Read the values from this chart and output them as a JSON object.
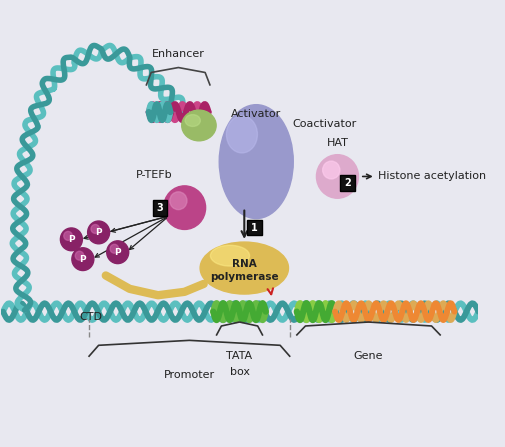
{
  "bg_color": "#e8e8f0",
  "labels": {
    "enhancer": "Enhancer",
    "activator": "Activator",
    "coactivator": "Coactivator",
    "hat": "HAT",
    "histone_acetylation": "Histone acetylation",
    "ptefb": "P-TEFb",
    "ctd": "CTD",
    "rna_pol": [
      "RNA",
      "polymerase"
    ],
    "tata_box": [
      "TATA",
      "box"
    ],
    "promoter": "Promoter",
    "gene": "Gene",
    "p_label": "P",
    "num1": "1",
    "num2": "2",
    "num3": "3"
  },
  "colors": {
    "dna_main": "#5bbfbf",
    "dna_dark": "#3a9999",
    "dna_enhancer": "#cc4488",
    "dna_enhancer2": "#aa2266",
    "activator": "#99bb66",
    "activator_hl": "#bbdd88",
    "coactivator": "#9999cc",
    "coactivator_hl": "#bbbbee",
    "rna_pol": "#ddbb55",
    "rna_pol_hl": "#ffee88",
    "hat": "#ddaacc",
    "hat_hl": "#ffccee",
    "ptefb": "#bb4488",
    "ptefb_hl": "#dd88bb",
    "phospho": "#882266",
    "phospho_hl": "#cc66aa",
    "arrow_black": "#222222",
    "arrow_red": "#cc2222",
    "number_box": "#111111",
    "number_text": "#ffffff",
    "dna_gene1": "#ddaa55",
    "dna_gene2": "#ee8833",
    "dna_gene3": "#88cc44",
    "dna_tata": "#66bb44",
    "ctd_color": "#ddbb55",
    "brace_color": "#333333",
    "dashed_color": "#888888",
    "text_color": "#222222"
  },
  "loop_path_x": [
    0.5,
    0.38,
    0.42,
    0.65,
    1.0,
    1.5,
    2.1,
    2.7,
    3.2,
    3.6,
    3.85,
    4.0
  ],
  "loop_path_y": [
    2.75,
    4.0,
    5.3,
    6.5,
    7.3,
    7.8,
    8.0,
    7.85,
    7.4,
    7.0,
    6.8,
    6.6
  ]
}
